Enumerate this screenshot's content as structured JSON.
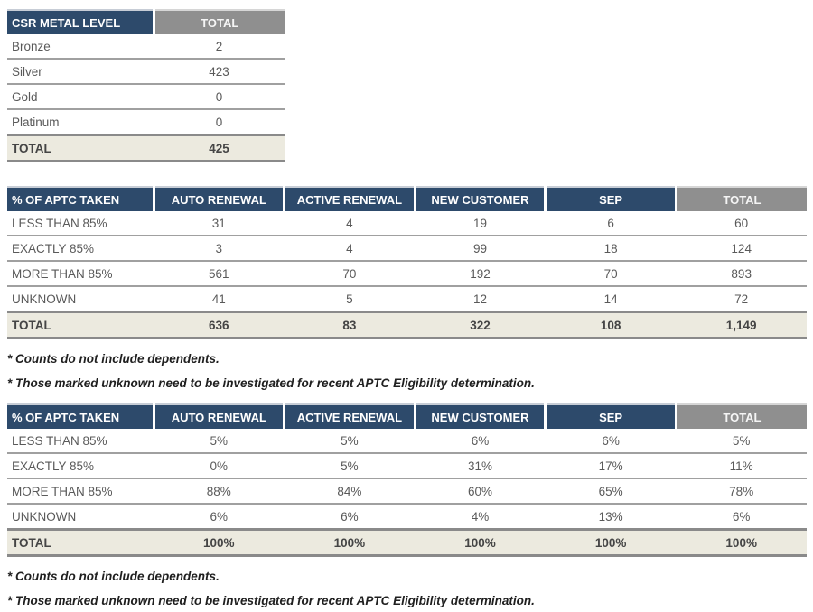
{
  "colors": {
    "header_blue": "#2d4a6b",
    "header_gray": "#8f8f8f",
    "total_row_bg": "#eceadf",
    "total_border": "#8a8a8a",
    "row_border": "#a0a0a0",
    "body_text": "#595959",
    "total_text": "#454545",
    "footnote_text": "#1f1f1f"
  },
  "metal_table": {
    "headers": [
      "CSR METAL LEVEL",
      "TOTAL"
    ],
    "rows": [
      {
        "label": "Bronze",
        "values": [
          "2"
        ]
      },
      {
        "label": "Silver",
        "values": [
          "423"
        ]
      },
      {
        "label": "Gold",
        "values": [
          "0"
        ]
      },
      {
        "label": "Platinum",
        "values": [
          "0"
        ]
      }
    ],
    "total": {
      "label": "TOTAL",
      "values": [
        "425"
      ]
    }
  },
  "counts_table": {
    "headers": [
      "% OF APTC TAKEN",
      "AUTO RENEWAL",
      "ACTIVE RENEWAL",
      "NEW CUSTOMER",
      "SEP",
      "TOTAL"
    ],
    "rows": [
      {
        "label": "LESS THAN 85%",
        "values": [
          "31",
          "4",
          "19",
          "6",
          "60"
        ]
      },
      {
        "label": "EXACTLY 85%",
        "values": [
          "3",
          "4",
          "99",
          "18",
          "124"
        ]
      },
      {
        "label": "MORE THAN 85%",
        "values": [
          "561",
          "70",
          "192",
          "70",
          "893"
        ]
      },
      {
        "label": "UNKNOWN",
        "values": [
          "41",
          "5",
          "12",
          "14",
          "72"
        ]
      }
    ],
    "total": {
      "label": "TOTAL",
      "values": [
        "636",
        "83",
        "322",
        "108",
        "1,149"
      ]
    },
    "footnotes": [
      "* Counts do not include dependents.",
      "* Those marked unknown need to be investigated for recent APTC Eligibility determination."
    ]
  },
  "percent_table": {
    "headers": [
      "% OF APTC TAKEN",
      "AUTO RENEWAL",
      "ACTIVE RENEWAL",
      "NEW CUSTOMER",
      "SEP",
      "TOTAL"
    ],
    "rows": [
      {
        "label": "LESS THAN 85%",
        "values": [
          "5%",
          "5%",
          "6%",
          "6%",
          "5%"
        ]
      },
      {
        "label": "EXACTLY 85%",
        "values": [
          "0%",
          "5%",
          "31%",
          "17%",
          "11%"
        ]
      },
      {
        "label": "MORE THAN 85%",
        "values": [
          "88%",
          "84%",
          "60%",
          "65%",
          "78%"
        ]
      },
      {
        "label": "UNKNOWN",
        "values": [
          "6%",
          "6%",
          "4%",
          "13%",
          "6%"
        ]
      }
    ],
    "total": {
      "label": "TOTAL",
      "values": [
        "100%",
        "100%",
        "100%",
        "100%",
        "100%"
      ]
    },
    "footnotes": [
      "* Counts do not include dependents.",
      "* Those marked unknown need to be investigated for recent APTC Eligibility determination."
    ]
  }
}
